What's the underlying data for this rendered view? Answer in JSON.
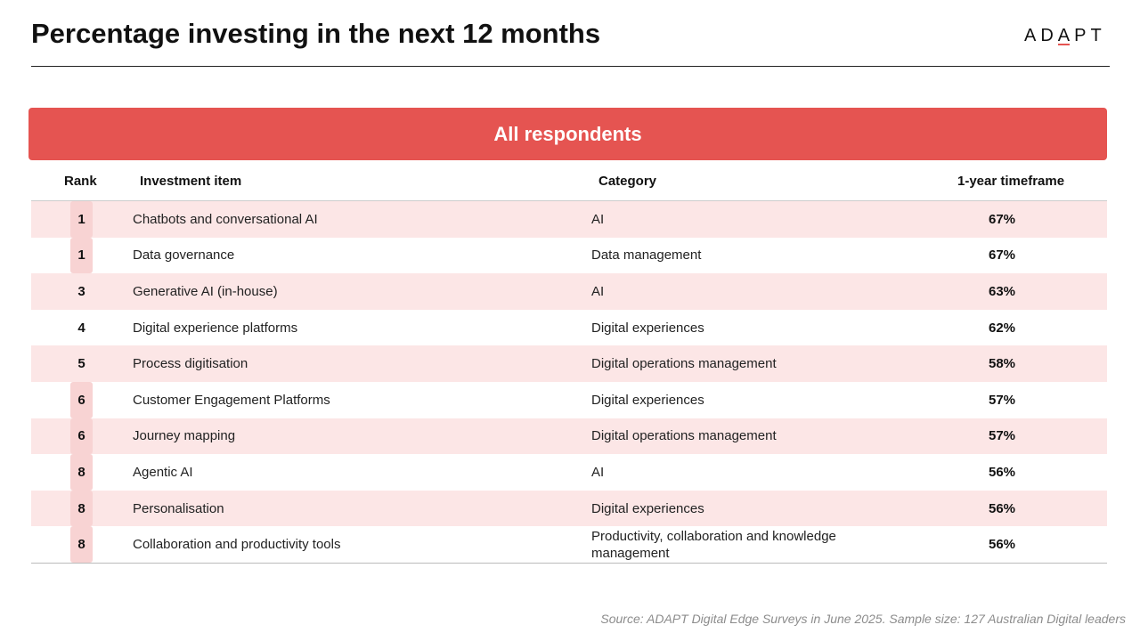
{
  "slide": {
    "title": "Percentage investing in the next 12 months",
    "logo_text_pre": "AD",
    "logo_text_accent": "A",
    "logo_text_post": "PT"
  },
  "banner": {
    "label": "All respondents"
  },
  "table": {
    "headers": {
      "rank": "Rank",
      "item": "Investment item",
      "category": "Category",
      "timeframe": "1-year timeframe"
    },
    "rows": [
      {
        "rank": "1",
        "item": "Chatbots and conversational AI",
        "category": "AI",
        "pct": "67%"
      },
      {
        "rank": "1",
        "item": "Data governance",
        "category": "Data management",
        "pct": "67%"
      },
      {
        "rank": "3",
        "item": "Generative AI (in-house)",
        "category": "AI",
        "pct": "63%"
      },
      {
        "rank": "4",
        "item": "Digital experience platforms",
        "category": "Digital experiences",
        "pct": "62%"
      },
      {
        "rank": "5",
        "item": "Process digitisation",
        "category": "Digital operations management",
        "pct": "58%"
      },
      {
        "rank": "6",
        "item": "Customer Engagement Platforms",
        "category": "Digital experiences",
        "pct": "57%"
      },
      {
        "rank": "6",
        "item": "Journey mapping",
        "category": "Digital operations management",
        "pct": "57%"
      },
      {
        "rank": "8",
        "item": "Agentic AI",
        "category": "AI",
        "pct": "56%"
      },
      {
        "rank": "8",
        "item": "Personalisation",
        "category": "Digital experiences",
        "pct": "56%"
      },
      {
        "rank": "8",
        "item": "Collaboration and productivity tools",
        "category": "Productivity, collaboration and knowledge management",
        "pct": "56%"
      }
    ]
  },
  "footer": {
    "source": "Source: ADAPT Digital Edge Surveys in June 2025. Sample size: 127 Australian Digital leaders"
  },
  "colors": {
    "accent": "#e55451",
    "row_shade": "#fce6e6",
    "tie_highlight": "#f8d3d3"
  }
}
